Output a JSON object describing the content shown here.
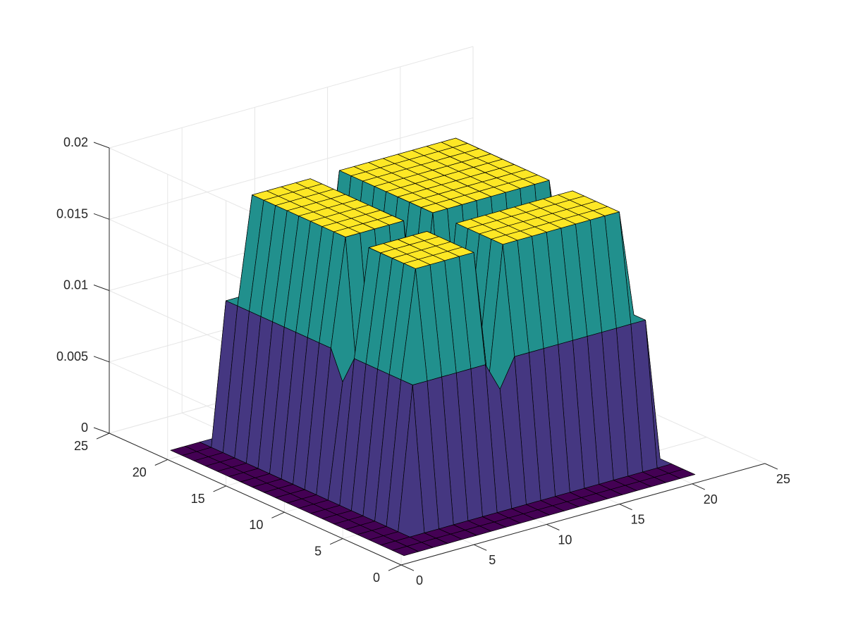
{
  "chart_data": {
    "type": "surface",
    "title": "",
    "xlabel": "",
    "ylabel": "",
    "zlabel": "",
    "xlim": [
      0,
      25
    ],
    "ylim": [
      0,
      25
    ],
    "zlim": [
      0,
      0.02
    ],
    "grid": true,
    "colormap": "viridis",
    "x_ticks": [
      "0",
      "5",
      "10",
      "15",
      "20",
      "25"
    ],
    "y_ticks": [
      "0",
      "5",
      "10",
      "15",
      "20",
      "25"
    ],
    "z_ticks": [
      "0",
      "0.005",
      "0.01",
      "0.015",
      "0.02"
    ],
    "x_tick_values": [
      0,
      5,
      10,
      15,
      20,
      25
    ],
    "y_tick_values": [
      0,
      5,
      10,
      15,
      20,
      25
    ],
    "z_tick_values": [
      0,
      0.005,
      0.01,
      0.015,
      0.02
    ],
    "surface": {
      "grid_size": 21,
      "grid_start": 1,
      "plateau_value": 0.0175,
      "x_profile": [
        0,
        0,
        0,
        0.01,
        0.0175,
        0.0175,
        0.0175,
        0.0175,
        0.0175,
        0.0175,
        0.0175,
        0.0175,
        0.0175,
        0.0175,
        0.0175,
        0.0175,
        0.0175,
        0.0175,
        0.0175,
        0.01,
        0
      ],
      "y_profile": [
        0,
        0,
        0,
        0.01,
        0.0175,
        0.0175,
        0.0175,
        0.0175,
        0.0175,
        0.0175,
        0.0175,
        0.0175,
        0.0175,
        0.0175,
        0.0175,
        0.0175,
        0.0175,
        0.0175,
        0.0175,
        0.01,
        0
      ],
      "notches": [
        {
          "axis": "x",
          "index": 9,
          "value": 0.008
        },
        {
          "axis": "y",
          "index": 9,
          "value": 0.008
        }
      ]
    },
    "colors": {
      "low": "#440154",
      "mid_low": "#453781",
      "mid": "#21908d",
      "high": "#fde725"
    }
  }
}
